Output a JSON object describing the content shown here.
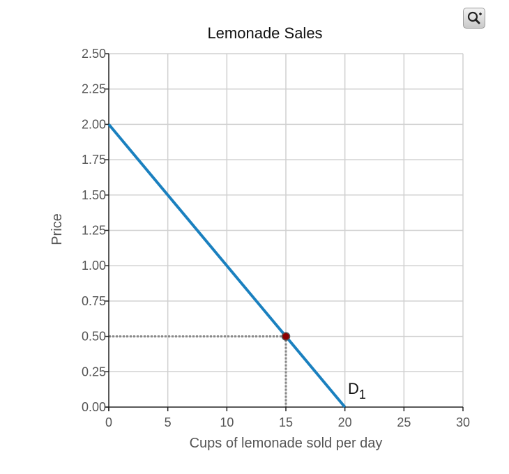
{
  "chart_data": {
    "type": "line",
    "title": "Lemonade Sales",
    "xlabel": "Cups of lemonade sold per day",
    "ylabel": "Price",
    "xlim": [
      0,
      30
    ],
    "ylim": [
      0,
      2.5
    ],
    "x_ticks": [
      "0",
      "5",
      "10",
      "15",
      "20",
      "25",
      "30"
    ],
    "y_ticks": [
      "0.00",
      "0.25",
      "0.50",
      "0.75",
      "1.00",
      "1.25",
      "1.50",
      "1.75",
      "2.00",
      "2.25",
      "2.50"
    ],
    "x_tick_values": [
      0,
      5,
      10,
      15,
      20,
      25,
      30
    ],
    "y_tick_values": [
      0,
      0.25,
      0.5,
      0.75,
      1.0,
      1.25,
      1.5,
      1.75,
      2.0,
      2.25,
      2.5
    ],
    "grid": true,
    "series": [
      {
        "name": "D1",
        "label_main": "D",
        "label_sub": "1",
        "x": [
          0,
          20
        ],
        "y": [
          2.0,
          0.0
        ],
        "color": "#1a80bf"
      }
    ],
    "marked_point": {
      "x": 15,
      "y": 0.5,
      "color": "#8b0000"
    },
    "guide_color": "#888888"
  },
  "toolbar": {
    "zoom_icon": "zoom-icon"
  }
}
